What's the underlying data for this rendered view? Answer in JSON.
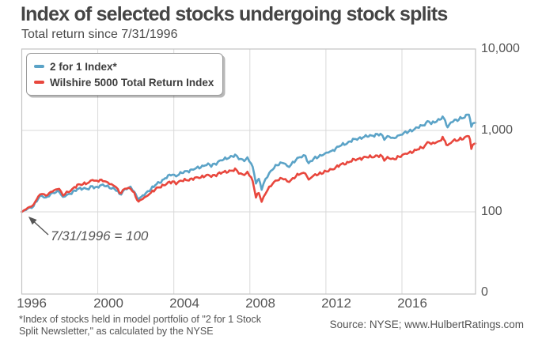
{
  "header": {
    "title": "Index of selected stocks undergoing stock splits",
    "subtitle": "Total return since 7/31/1996"
  },
  "annotation": {
    "text": "7/31/1996 = 100"
  },
  "footnote": {
    "line1": "*Index of stocks held in model portfolio of \"2 for 1 Stock",
    "line2": "Split Newsletter,\" as calculated by the NYSE"
  },
  "source": {
    "text": "Source: NYSE; www.HulbertRatings.com"
  },
  "chart_data": {
    "type": "line",
    "title": "Index of selected stocks undergoing stock splits",
    "subtitle": "Total return since 7/31/1996",
    "baseline_note": "7/31/1996 = 100",
    "grid": true,
    "legend_position": "top-left",
    "x_axis": {
      "range_years": [
        1996.58,
        2020.45
      ],
      "ticks": [
        1996,
        2000,
        2004,
        2008,
        2012,
        2016
      ],
      "tick_labels": [
        "1996",
        "2000",
        "2004",
        "2008",
        "2012",
        "2016"
      ]
    },
    "y_axis": {
      "scale": "log",
      "tick_values": [
        10000,
        1000,
        100,
        0
      ],
      "tick_labels": [
        "10,000",
        "1,000",
        "100",
        "0"
      ]
    },
    "series": [
      {
        "name": "2 for 1 Index*",
        "color": "#5ba3c7",
        "points": [
          [
            1996.58,
            100
          ],
          [
            1996.8,
            106
          ],
          [
            1997.0,
            112
          ],
          [
            1997.2,
            118
          ],
          [
            1997.45,
            146
          ],
          [
            1997.65,
            158
          ],
          [
            1997.85,
            150
          ],
          [
            1998.1,
            162
          ],
          [
            1998.3,
            172
          ],
          [
            1998.55,
            182
          ],
          [
            1998.75,
            148
          ],
          [
            1998.95,
            160
          ],
          [
            1999.2,
            172
          ],
          [
            1999.5,
            188
          ],
          [
            1999.8,
            196
          ],
          [
            2000.1,
            192
          ],
          [
            2000.3,
            205
          ],
          [
            2000.45,
            197
          ],
          [
            2000.62,
            208
          ],
          [
            2000.85,
            212
          ],
          [
            2001.1,
            204
          ],
          [
            2001.3,
            197
          ],
          [
            2001.55,
            186
          ],
          [
            2001.72,
            163
          ],
          [
            2001.9,
            178
          ],
          [
            2002.1,
            196
          ],
          [
            2002.3,
            197
          ],
          [
            2002.5,
            176
          ],
          [
            2002.65,
            152
          ],
          [
            2002.8,
            145
          ],
          [
            2002.95,
            158
          ],
          [
            2003.1,
            166
          ],
          [
            2003.3,
            186
          ],
          [
            2003.6,
            212
          ],
          [
            2003.9,
            236
          ],
          [
            2004.2,
            268
          ],
          [
            2004.5,
            288
          ],
          [
            2004.7,
            280
          ],
          [
            2005.0,
            300
          ],
          [
            2005.3,
            318
          ],
          [
            2005.6,
            331
          ],
          [
            2006.0,
            358
          ],
          [
            2006.3,
            381
          ],
          [
            2006.55,
            370
          ],
          [
            2006.9,
            408
          ],
          [
            2007.2,
            441
          ],
          [
            2007.5,
            470
          ],
          [
            2007.8,
            489
          ],
          [
            2008.0,
            462
          ],
          [
            2008.2,
            431
          ],
          [
            2008.45,
            446
          ],
          [
            2008.65,
            400
          ],
          [
            2008.8,
            302
          ],
          [
            2008.9,
            231
          ],
          [
            2009.05,
            251
          ],
          [
            2009.2,
            192
          ],
          [
            2009.4,
            249
          ],
          [
            2009.6,
            301
          ],
          [
            2009.85,
            346
          ],
          [
            2010.1,
            390
          ],
          [
            2010.35,
            408
          ],
          [
            2010.55,
            352
          ],
          [
            2010.75,
            381
          ],
          [
            2011.0,
            442
          ],
          [
            2011.3,
            476
          ],
          [
            2011.5,
            491
          ],
          [
            2011.67,
            393
          ],
          [
            2011.85,
            431
          ],
          [
            2012.1,
            468
          ],
          [
            2012.35,
            501
          ],
          [
            2012.6,
            521
          ],
          [
            2012.8,
            546
          ],
          [
            2013.1,
            601
          ],
          [
            2013.4,
            661
          ],
          [
            2013.7,
            701
          ],
          [
            2014.0,
            761
          ],
          [
            2014.3,
            801
          ],
          [
            2014.6,
            831
          ],
          [
            2014.9,
            861
          ],
          [
            2015.2,
            881
          ],
          [
            2015.45,
            891
          ],
          [
            2015.65,
            801
          ],
          [
            2015.9,
            856
          ],
          [
            2016.1,
            776
          ],
          [
            2016.35,
            861
          ],
          [
            2016.6,
            906
          ],
          [
            2016.85,
            951
          ],
          [
            2017.1,
            1011
          ],
          [
            2017.4,
            1081
          ],
          [
            2017.7,
            1161
          ],
          [
            2018.0,
            1321
          ],
          [
            2018.12,
            1181
          ],
          [
            2018.3,
            1281
          ],
          [
            2018.5,
            1351
          ],
          [
            2018.72,
            1451
          ],
          [
            2018.85,
            1301
          ],
          [
            2018.98,
            1091
          ],
          [
            2019.15,
            1251
          ],
          [
            2019.35,
            1341
          ],
          [
            2019.5,
            1321
          ],
          [
            2019.65,
            1401
          ],
          [
            2019.8,
            1441
          ],
          [
            2019.95,
            1521
          ],
          [
            2020.1,
            1601
          ],
          [
            2020.16,
            1381
          ],
          [
            2020.23,
            1076
          ],
          [
            2020.3,
            1181
          ],
          [
            2020.38,
            1281
          ],
          [
            2020.45,
            1241
          ]
        ]
      },
      {
        "name": "Wilshire 5000 Total Return Index",
        "color": "#e8473d",
        "points": [
          [
            1996.58,
            100
          ],
          [
            1996.8,
            108
          ],
          [
            1997.0,
            115
          ],
          [
            1997.2,
            122
          ],
          [
            1997.45,
            154
          ],
          [
            1997.65,
            168
          ],
          [
            1997.85,
            160
          ],
          [
            1998.1,
            172
          ],
          [
            1998.3,
            184
          ],
          [
            1998.55,
            196
          ],
          [
            1998.75,
            158
          ],
          [
            1998.95,
            171
          ],
          [
            1999.2,
            188
          ],
          [
            1999.5,
            210
          ],
          [
            1999.8,
            222
          ],
          [
            2000.1,
            228
          ],
          [
            2000.3,
            248
          ],
          [
            2000.45,
            238
          ],
          [
            2000.62,
            246
          ],
          [
            2000.85,
            240
          ],
          [
            2001.1,
            228
          ],
          [
            2001.3,
            218
          ],
          [
            2001.55,
            201
          ],
          [
            2001.72,
            168
          ],
          [
            2001.9,
            185
          ],
          [
            2002.1,
            196
          ],
          [
            2002.3,
            192
          ],
          [
            2002.5,
            168
          ],
          [
            2002.65,
            142
          ],
          [
            2002.8,
            134
          ],
          [
            2002.95,
            146
          ],
          [
            2003.1,
            151
          ],
          [
            2003.3,
            168
          ],
          [
            2003.6,
            188
          ],
          [
            2003.9,
            206
          ],
          [
            2004.2,
            222
          ],
          [
            2004.5,
            233
          ],
          [
            2004.7,
            228
          ],
          [
            2005.0,
            240
          ],
          [
            2005.3,
            248
          ],
          [
            2005.6,
            255
          ],
          [
            2006.0,
            268
          ],
          [
            2006.3,
            281
          ],
          [
            2006.55,
            274
          ],
          [
            2006.9,
            292
          ],
          [
            2007.2,
            306
          ],
          [
            2007.5,
            318
          ],
          [
            2007.8,
            326
          ],
          [
            2008.0,
            306
          ],
          [
            2008.2,
            288
          ],
          [
            2008.45,
            296
          ],
          [
            2008.65,
            268
          ],
          [
            2008.8,
            201
          ],
          [
            2008.9,
            156
          ],
          [
            2009.05,
            169
          ],
          [
            2009.2,
            134
          ],
          [
            2009.4,
            169
          ],
          [
            2009.6,
            201
          ],
          [
            2009.85,
            229
          ],
          [
            2010.1,
            252
          ],
          [
            2010.35,
            262
          ],
          [
            2010.55,
            229
          ],
          [
            2010.75,
            246
          ],
          [
            2011.0,
            278
          ],
          [
            2011.3,
            296
          ],
          [
            2011.5,
            302
          ],
          [
            2011.67,
            249
          ],
          [
            2011.85,
            269
          ],
          [
            2012.1,
            288
          ],
          [
            2012.35,
            302
          ],
          [
            2012.6,
            312
          ],
          [
            2012.8,
            326
          ],
          [
            2013.1,
            352
          ],
          [
            2013.4,
            382
          ],
          [
            2013.7,
            402
          ],
          [
            2014.0,
            429
          ],
          [
            2014.3,
            449
          ],
          [
            2014.6,
            462
          ],
          [
            2014.9,
            476
          ],
          [
            2015.2,
            482
          ],
          [
            2015.45,
            486
          ],
          [
            2015.65,
            442
          ],
          [
            2015.9,
            469
          ],
          [
            2016.1,
            431
          ],
          [
            2016.35,
            472
          ],
          [
            2016.6,
            496
          ],
          [
            2016.85,
            519
          ],
          [
            2017.1,
            549
          ],
          [
            2017.4,
            582
          ],
          [
            2017.7,
            622
          ],
          [
            2018.0,
            740
          ],
          [
            2018.12,
            670
          ],
          [
            2018.3,
            705
          ],
          [
            2018.5,
            740
          ],
          [
            2018.72,
            800
          ],
          [
            2018.85,
            730
          ],
          [
            2018.98,
            640
          ],
          [
            2019.15,
            720
          ],
          [
            2019.35,
            760
          ],
          [
            2019.5,
            745
          ],
          [
            2019.65,
            780
          ],
          [
            2019.8,
            800
          ],
          [
            2019.95,
            840
          ],
          [
            2020.1,
            875
          ],
          [
            2020.16,
            750
          ],
          [
            2020.23,
            580
          ],
          [
            2020.3,
            650
          ],
          [
            2020.38,
            710
          ],
          [
            2020.45,
            690
          ]
        ]
      }
    ]
  }
}
